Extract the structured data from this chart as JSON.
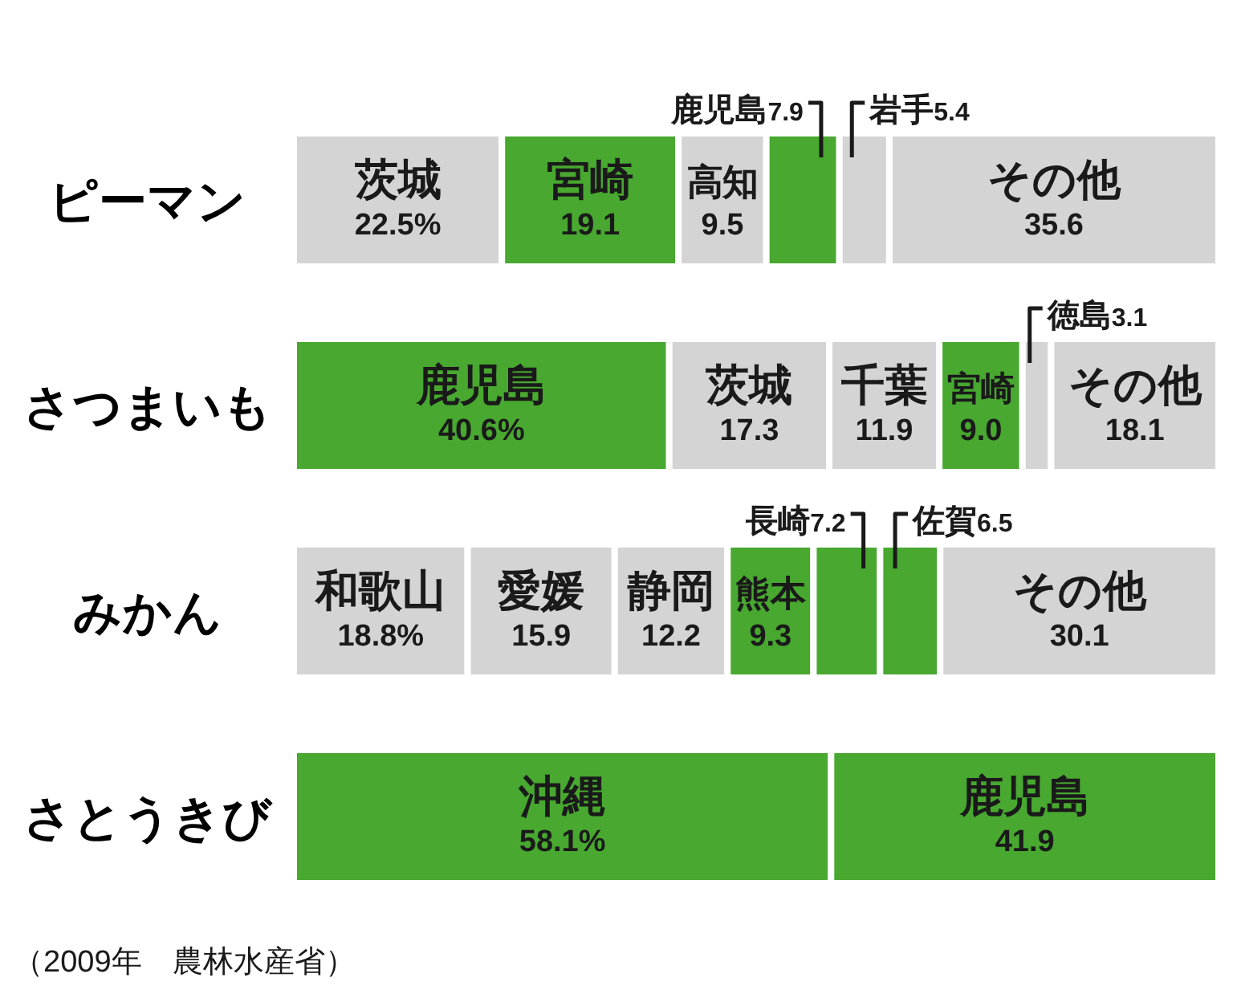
{
  "chart_data": [
    {
      "type": "bar",
      "orientation": "horizontal",
      "stacked": true,
      "xlim": [
        0,
        100
      ],
      "categories": [
        "ピーマン"
      ],
      "series": [
        {
          "name": "茨城",
          "color": "#d4d4d4",
          "values": [
            22.5
          ],
          "value_labels": [
            "22.5%"
          ]
        },
        {
          "name": "宮崎",
          "color": "#48a830",
          "values": [
            19.1
          ],
          "value_labels": [
            "19.1"
          ]
        },
        {
          "name": "高知",
          "color": "#d4d4d4",
          "values": [
            9.5
          ],
          "value_labels": [
            "9.5"
          ]
        },
        {
          "name": "鹿児島",
          "color": "#48a830",
          "values": [
            7.9
          ],
          "value_labels": [
            "7.9"
          ]
        },
        {
          "name": "岩手",
          "color": "#d4d4d4",
          "values": [
            5.4
          ],
          "value_labels": [
            "5.4"
          ]
        },
        {
          "name": "その他",
          "color": "#d4d4d4",
          "values": [
            35.6
          ],
          "value_labels": [
            "35.6"
          ]
        }
      ]
    },
    {
      "type": "bar",
      "orientation": "horizontal",
      "stacked": true,
      "xlim": [
        0,
        100
      ],
      "categories": [
        "さつまいも"
      ],
      "series": [
        {
          "name": "鹿児島",
          "color": "#48a830",
          "values": [
            40.6
          ],
          "value_labels": [
            "40.6%"
          ]
        },
        {
          "name": "茨城",
          "color": "#d4d4d4",
          "values": [
            17.3
          ],
          "value_labels": [
            "17.3"
          ]
        },
        {
          "name": "千葉",
          "color": "#d4d4d4",
          "values": [
            11.9
          ],
          "value_labels": [
            "11.9"
          ]
        },
        {
          "name": "宮崎",
          "color": "#48a830",
          "values": [
            9.0
          ],
          "value_labels": [
            "9.0"
          ]
        },
        {
          "name": "徳島",
          "color": "#d4d4d4",
          "values": [
            3.1
          ],
          "value_labels": [
            "3.1"
          ]
        },
        {
          "name": "その他",
          "color": "#d4d4d4",
          "values": [
            18.1
          ],
          "value_labels": [
            "18.1"
          ]
        }
      ]
    },
    {
      "type": "bar",
      "orientation": "horizontal",
      "stacked": true,
      "xlim": [
        0,
        100
      ],
      "categories": [
        "みかん"
      ],
      "series": [
        {
          "name": "和歌山",
          "color": "#d4d4d4",
          "values": [
            18.8
          ],
          "value_labels": [
            "18.8%"
          ]
        },
        {
          "name": "愛媛",
          "color": "#d4d4d4",
          "values": [
            15.9
          ],
          "value_labels": [
            "15.9"
          ]
        },
        {
          "name": "静岡",
          "color": "#d4d4d4",
          "values": [
            12.2
          ],
          "value_labels": [
            "12.2"
          ]
        },
        {
          "name": "熊本",
          "color": "#48a830",
          "values": [
            9.3
          ],
          "value_labels": [
            "9.3"
          ]
        },
        {
          "name": "長崎",
          "color": "#48a830",
          "values": [
            7.2
          ],
          "value_labels": [
            "7.2"
          ]
        },
        {
          "name": "佐賀",
          "color": "#48a830",
          "values": [
            6.5
          ],
          "value_labels": [
            "6.5"
          ]
        },
        {
          "name": "その他",
          "color": "#d4d4d4",
          "values": [
            30.1
          ],
          "value_labels": [
            "30.1"
          ]
        }
      ]
    },
    {
      "type": "bar",
      "orientation": "horizontal",
      "stacked": true,
      "xlim": [
        0,
        100
      ],
      "categories": [
        "さとうきび"
      ],
      "series": [
        {
          "name": "沖縄",
          "color": "#48a830",
          "values": [
            58.1
          ],
          "value_labels": [
            "58.1%"
          ]
        },
        {
          "name": "鹿児島",
          "color": "#48a830",
          "values": [
            41.9
          ],
          "value_labels": [
            "41.9"
          ]
        }
      ],
      "annotations": [
        "（2009年　農林水産省）"
      ]
    }
  ]
}
